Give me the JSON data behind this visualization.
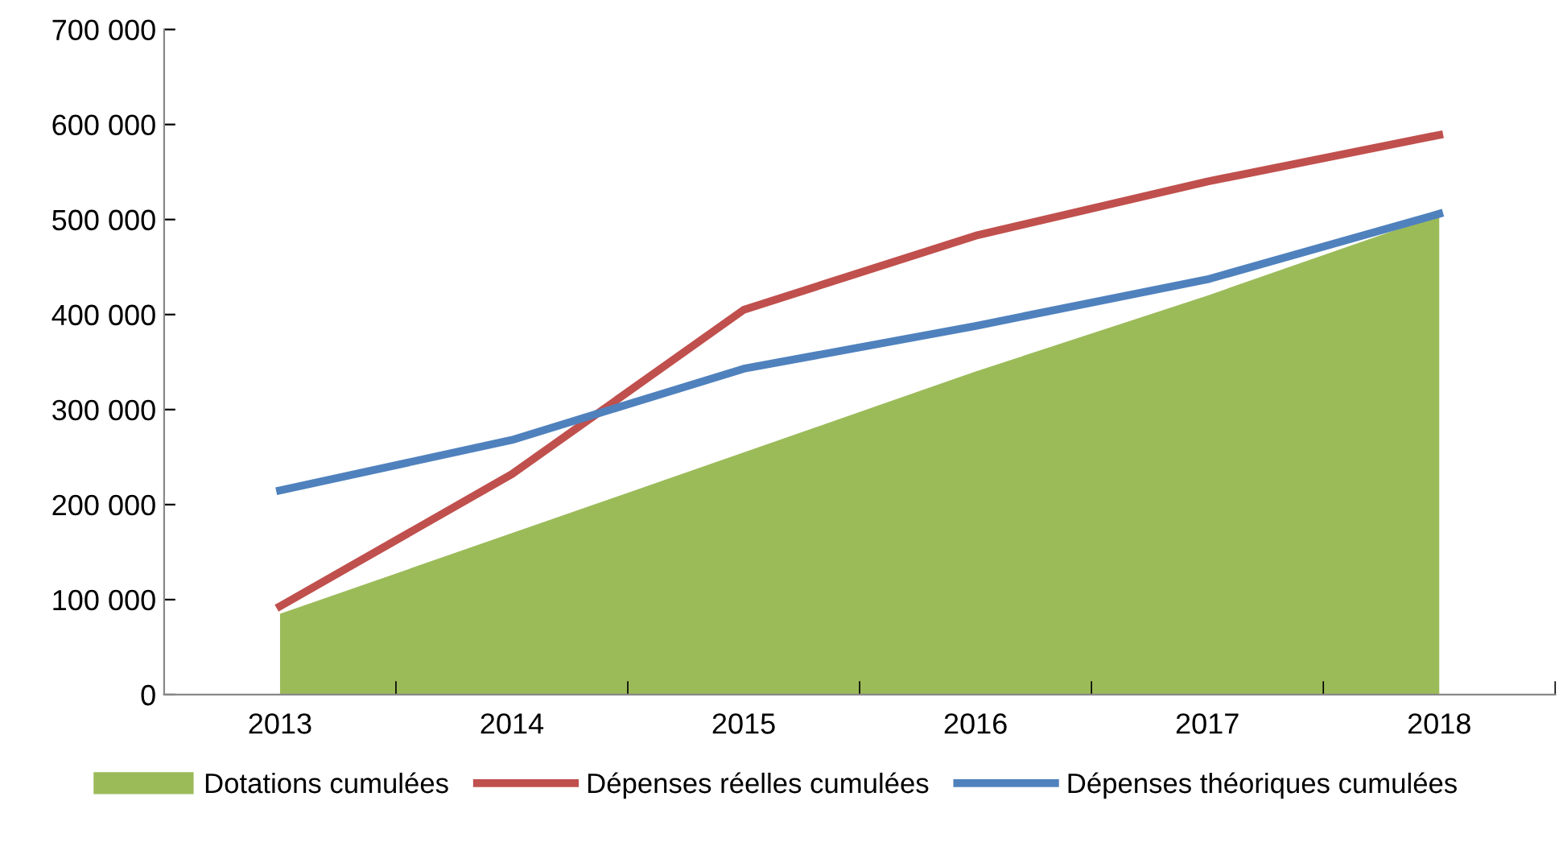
{
  "chart_data": {
    "type": "line",
    "categories": [
      "2013",
      "2014",
      "2015",
      "2016",
      "2017",
      "2018"
    ],
    "series": [
      {
        "name": "Dotations cumulées",
        "type": "area",
        "color": "#9bbb59",
        "values": [
          85000,
          170000,
          255000,
          340000,
          420000,
          505000
        ]
      },
      {
        "name": "Dépenses réelles cumulées",
        "color": "#c0504d",
        "values": [
          93000,
          232000,
          405000,
          483000,
          540000,
          589000
        ]
      },
      {
        "name": "Dépenses théoriques cumulées",
        "color": "#4f81bd",
        "values": [
          215000,
          268000,
          343000,
          388000,
          437000,
          506000
        ]
      }
    ],
    "ylim": [
      0,
      700000
    ],
    "yticks": [
      0,
      {
        "value": 100000,
        "label": "100 000"
      },
      {
        "value": 200000,
        "label": "200 000"
      },
      {
        "value": 300000,
        "label": "300 000"
      },
      {
        "value": 400000,
        "label": "400 000"
      },
      {
        "value": 500000,
        "label": "500 000"
      },
      {
        "value": 600000,
        "label": "600 000"
      },
      {
        "value": 700000,
        "label": "700 000"
      }
    ],
    "grid": false,
    "legend": "bottom",
    "marker": "none",
    "line_style": "solid"
  }
}
